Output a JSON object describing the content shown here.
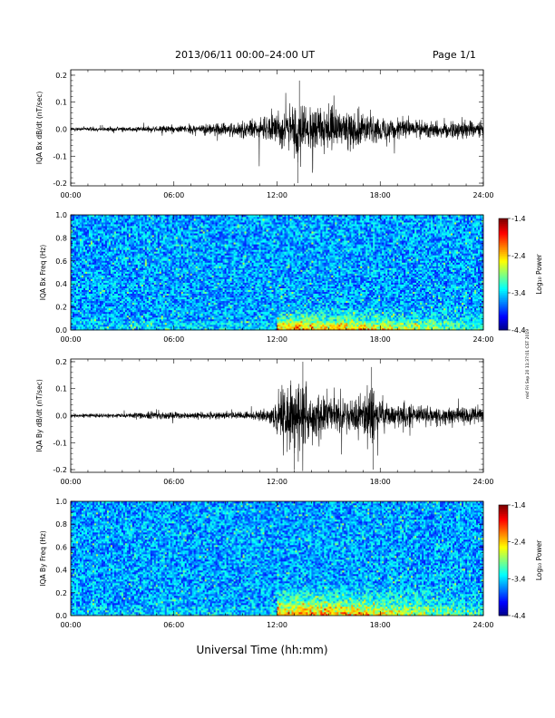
{
  "header": {
    "title": "2013/06/11   00:00–24:00 UT",
    "page": "Page 1/1"
  },
  "side_note": "mkf  Fri Sep 20 11:37:01 CST 2019",
  "xlabel": "Universal Time (hh:mm)",
  "colors": {
    "trace": "#000000",
    "plot_bg": "#ffffff"
  },
  "chart_data": [
    {
      "type": "line",
      "ylabel": "IQA Bx dB/dt (nT/sec)",
      "x_ticks": [
        "00:00",
        "06:00",
        "12:00",
        "18:00",
        "24:00"
      ],
      "xlim": [
        "00:00",
        "24:00"
      ],
      "ylim": [
        -0.21,
        0.22
      ],
      "y_ticks": [
        "0.2",
        "0.1",
        "0.0",
        "-0.1",
        "-0.2"
      ],
      "envelope": {
        "time_hours": [
          0,
          2,
          4,
          5,
          6,
          8,
          9.5,
          10.5,
          11,
          11.5,
          12,
          12.5,
          13,
          13.3,
          13.6,
          14,
          15,
          16,
          17,
          18,
          19,
          20,
          21,
          22,
          23,
          24
        ],
        "amplitude": [
          0.01,
          0.012,
          0.015,
          0.02,
          0.02,
          0.03,
          0.04,
          0.05,
          0.06,
          0.07,
          0.08,
          0.11,
          0.15,
          0.19,
          0.13,
          0.12,
          0.11,
          0.1,
          0.08,
          0.07,
          0.06,
          0.05,
          0.05,
          0.05,
          0.05,
          0.05
        ]
      },
      "peaks": [
        {
          "t": 13.3,
          "v": 0.18
        },
        {
          "t": 13.2,
          "v": -0.2
        }
      ]
    },
    {
      "type": "heatmap",
      "ylabel": "IQA Bx Freq (Hz)",
      "x_ticks": [
        "00:00",
        "06:00",
        "12:00",
        "18:00",
        "24:00"
      ],
      "ylim": [
        0.0,
        1.0
      ],
      "y_ticks": [
        "1.0",
        "0.8",
        "0.6",
        "0.4",
        "0.2",
        "0.0"
      ],
      "colorbar": {
        "label": "Log₁₀ Power",
        "range": [
          -4.4,
          -1.4
        ],
        "ticks": [
          "-1.4",
          "-2.4",
          "-3.4",
          "-4.4"
        ]
      },
      "enhanced_power": {
        "time_hours": [
          12,
          24
        ],
        "freq_hz": [
          0.0,
          0.25
        ]
      }
    },
    {
      "type": "line",
      "ylabel": "IQA By dB/dt (nT/sec)",
      "x_ticks": [
        "00:00",
        "06:00",
        "12:00",
        "18:00",
        "24:00"
      ],
      "xlim": [
        "00:00",
        "24:00"
      ],
      "ylim": [
        -0.21,
        0.21
      ],
      "y_ticks": [
        "0.2",
        "0.1",
        "0.0",
        "-0.1",
        "-0.2"
      ],
      "envelope": {
        "time_hours": [
          0,
          2,
          4,
          5,
          6,
          8,
          10,
          11,
          11.5,
          12,
          12.5,
          13,
          13.5,
          14,
          15,
          16,
          17,
          17.5,
          18,
          19,
          20,
          21,
          22,
          23,
          24
        ],
        "amplitude": [
          0.01,
          0.012,
          0.015,
          0.02,
          0.02,
          0.02,
          0.02,
          0.03,
          0.05,
          0.1,
          0.16,
          0.2,
          0.2,
          0.12,
          0.1,
          0.09,
          0.08,
          0.2,
          0.07,
          0.06,
          0.05,
          0.05,
          0.05,
          0.05,
          0.05
        ]
      },
      "peaks": [
        {
          "t": 13.5,
          "v": 0.2
        },
        {
          "t": 13.0,
          "v": -0.2
        },
        {
          "t": 17.5,
          "v": 0.18
        },
        {
          "t": 17.6,
          "v": -0.2
        }
      ]
    },
    {
      "type": "heatmap",
      "ylabel": "IQA By Freq (Hz)",
      "x_ticks": [
        "00:00",
        "06:00",
        "12:00",
        "18:00",
        "24:00"
      ],
      "ylim": [
        0.0,
        1.0
      ],
      "y_ticks": [
        "1.0",
        "0.8",
        "0.6",
        "0.4",
        "0.2",
        "0.0"
      ],
      "colorbar": {
        "label": "Log₁₀ Power",
        "range": [
          -4.4,
          -1.4
        ],
        "ticks": [
          "-1.4",
          "-2.4",
          "-3.4",
          "-4.4"
        ]
      },
      "enhanced_power": {
        "time_hours": [
          12,
          24
        ],
        "freq_hz": [
          0.0,
          0.35
        ]
      }
    }
  ]
}
